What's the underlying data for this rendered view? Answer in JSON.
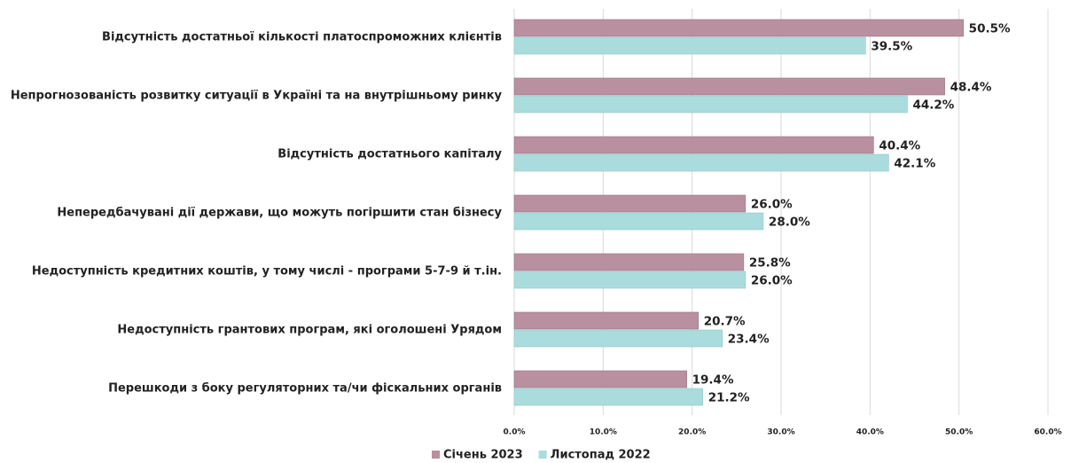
{
  "chart_data": {
    "type": "barh",
    "categories": [
      "Відсутність достатньої кількості платоспроможних клієнтів",
      "Непрогнозованість розвитку ситуації в Україні та на внутрішньому ринку",
      "Відсутність достатнього капіталу",
      "Непередбачувані дії держави, що можуть погіршити стан бізнесу",
      "Недоступність кредитних коштів, у тому числі - програми 5-7-9 й т.ін.",
      "Недоступність грантових програм, які оголошені Урядом",
      "Перешкоди з боку регуляторних та/чи фіскальних органів"
    ],
    "series": [
      {
        "name": "Січень 2023",
        "color": "#b9909f",
        "values": [
          50.5,
          48.4,
          40.4,
          26.0,
          25.8,
          20.7,
          19.4
        ],
        "value_labels": [
          "50.5%",
          "48.4%",
          "40.4%",
          "26.0%",
          "25.8%",
          "20.7%",
          "19.4%"
        ]
      },
      {
        "name": "Листопад 2022",
        "color": "#abdcdd",
        "values": [
          39.5,
          44.2,
          42.1,
          28.0,
          26.0,
          23.4,
          21.2
        ],
        "value_labels": [
          "39.5%",
          "44.2%",
          "42.1%",
          "28.0%",
          "26.0%",
          "23.4%",
          "21.2%"
        ]
      }
    ],
    "xlim": [
      0,
      60
    ],
    "xticks": [
      {
        "value": 0,
        "label": "0.0%"
      },
      {
        "value": 10,
        "label": "10.0%"
      },
      {
        "value": 20,
        "label": "20.0%"
      },
      {
        "value": 30,
        "label": "30.0%"
      },
      {
        "value": 40,
        "label": "40.0%"
      },
      {
        "value": 50,
        "label": "50.0%"
      },
      {
        "value": 60,
        "label": "60.0%"
      }
    ],
    "grid": true,
    "legend": "bottom"
  }
}
